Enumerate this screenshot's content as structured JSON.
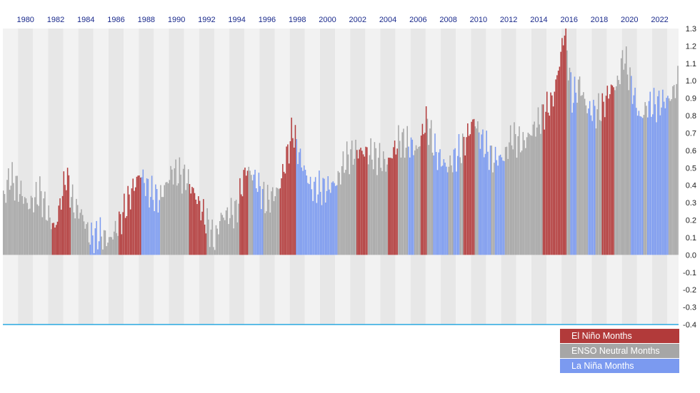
{
  "chart_data": {
    "type": "bar",
    "subtype": "monthly bars colored by ENSO phase",
    "x_ticks": [
      "1980",
      "1982",
      "1984",
      "1986",
      "1988",
      "1990",
      "1992",
      "1994",
      "1996",
      "1998",
      "2000",
      "2002",
      "2004",
      "2006",
      "2008",
      "2010",
      "2012",
      "2014",
      "2016",
      "2018",
      "2020",
      "2022"
    ],
    "x_range": [
      "1979-01",
      "2023-09"
    ],
    "ylim": [
      -0.4,
      1.3
    ],
    "y_ticks": [
      "1.3",
      "1.2",
      "1.1",
      "1.0",
      "0.9",
      "0.8",
      "0.7",
      "0.6",
      "0.5",
      "0.4",
      "0.3",
      "0.2",
      "0.1",
      "0.0",
      "-0.1",
      "-0.2",
      "-0.3",
      "-0.4"
    ],
    "y_axis_position": "right",
    "x_axis_position": "top",
    "grid": "alternating vertical year bands",
    "legend_position": "bottom-right",
    "colors": {
      "el_nino": "#b23a3a",
      "neutral": "#a6a6a6",
      "la_nina": "#7b9af0",
      "band_light": "#f2f2f2",
      "band_dark": "#e7e7e7",
      "baseline": "#29a8e0"
    },
    "legend": [
      {
        "label": "El Niño Months",
        "phase": "N"
      },
      {
        "label": "ENSO Neutral Months",
        "phase": "E"
      },
      {
        "label": "La Niña Months",
        "phase": "L"
      }
    ],
    "phase_periods": [
      {
        "from": "1979-01",
        "to": "1982-03",
        "phase": "E"
      },
      {
        "from": "1982-04",
        "to": "1983-06",
        "phase": "N"
      },
      {
        "from": "1983-07",
        "to": "1984-09",
        "phase": "E"
      },
      {
        "from": "1984-10",
        "to": "1985-06",
        "phase": "L"
      },
      {
        "from": "1985-07",
        "to": "1986-08",
        "phase": "E"
      },
      {
        "from": "1986-09",
        "to": "1988-02",
        "phase": "N"
      },
      {
        "from": "1988-03",
        "to": "1989-05",
        "phase": "L"
      },
      {
        "from": "1989-06",
        "to": "1991-04",
        "phase": "E"
      },
      {
        "from": "1991-05",
        "to": "1992-06",
        "phase": "N"
      },
      {
        "from": "1992-07",
        "to": "1994-08",
        "phase": "E"
      },
      {
        "from": "1994-09",
        "to": "1995-03",
        "phase": "N"
      },
      {
        "from": "1995-04",
        "to": "1995-07",
        "phase": "E"
      },
      {
        "from": "1995-08",
        "to": "1996-03",
        "phase": "L"
      },
      {
        "from": "1996-04",
        "to": "1997-04",
        "phase": "E"
      },
      {
        "from": "1997-05",
        "to": "1998-05",
        "phase": "N"
      },
      {
        "from": "1998-06",
        "to": "2001-02",
        "phase": "L"
      },
      {
        "from": "2001-03",
        "to": "2002-05",
        "phase": "E"
      },
      {
        "from": "2002-06",
        "to": "2003-02",
        "phase": "N"
      },
      {
        "from": "2003-03",
        "to": "2004-06",
        "phase": "E"
      },
      {
        "from": "2004-07",
        "to": "2005-02",
        "phase": "N"
      },
      {
        "from": "2005-03",
        "to": "2005-10",
        "phase": "E"
      },
      {
        "from": "2005-11",
        "to": "2006-03",
        "phase": "L"
      },
      {
        "from": "2006-04",
        "to": "2006-08",
        "phase": "E"
      },
      {
        "from": "2006-09",
        "to": "2007-01",
        "phase": "N"
      },
      {
        "from": "2007-02",
        "to": "2007-06",
        "phase": "E"
      },
      {
        "from": "2007-07",
        "to": "2008-06",
        "phase": "L"
      },
      {
        "from": "2008-07",
        "to": "2008-10",
        "phase": "E"
      },
      {
        "from": "2008-11",
        "to": "2009-03",
        "phase": "L"
      },
      {
        "from": "2009-04",
        "to": "2009-06",
        "phase": "E"
      },
      {
        "from": "2009-07",
        "to": "2010-03",
        "phase": "N"
      },
      {
        "from": "2010-04",
        "to": "2010-06",
        "phase": "E"
      },
      {
        "from": "2010-07",
        "to": "2011-04",
        "phase": "L"
      },
      {
        "from": "2011-05",
        "to": "2011-07",
        "phase": "E"
      },
      {
        "from": "2011-08",
        "to": "2012-03",
        "phase": "L"
      },
      {
        "from": "2012-04",
        "to": "2014-09",
        "phase": "E"
      },
      {
        "from": "2014-10",
        "to": "2016-04",
        "phase": "N"
      },
      {
        "from": "2016-05",
        "to": "2016-07",
        "phase": "E"
      },
      {
        "from": "2016-08",
        "to": "2016-12",
        "phase": "L"
      },
      {
        "from": "2017-01",
        "to": "2017-09",
        "phase": "E"
      },
      {
        "from": "2017-10",
        "to": "2018-03",
        "phase": "L"
      },
      {
        "from": "2018-04",
        "to": "2018-08",
        "phase": "E"
      },
      {
        "from": "2018-09",
        "to": "2019-06",
        "phase": "N"
      },
      {
        "from": "2019-07",
        "to": "2020-07",
        "phase": "E"
      },
      {
        "from": "2020-08",
        "to": "2021-05",
        "phase": "L"
      },
      {
        "from": "2021-06",
        "to": "2021-08",
        "phase": "E"
      },
      {
        "from": "2021-09",
        "to": "2023-01",
        "phase": "L"
      },
      {
        "from": "2023-02",
        "to": "2023-09",
        "phase": "E"
      }
    ],
    "anomaly_anchor_points": [
      {
        "date": "1979-01",
        "value": 0.32
      },
      {
        "date": "1979-06",
        "value": 0.45
      },
      {
        "date": "1980-03",
        "value": 0.36
      },
      {
        "date": "1980-09",
        "value": 0.28
      },
      {
        "date": "1981-06",
        "value": 0.36
      },
      {
        "date": "1982-01",
        "value": 0.22
      },
      {
        "date": "1982-06",
        "value": 0.15
      },
      {
        "date": "1983-03",
        "value": 0.46
      },
      {
        "date": "1983-09",
        "value": 0.28
      },
      {
        "date": "1984-03",
        "value": 0.24
      },
      {
        "date": "1984-10",
        "value": 0.1
      },
      {
        "date": "1985-06",
        "value": 0.12
      },
      {
        "date": "1986-01",
        "value": 0.08
      },
      {
        "date": "1986-09",
        "value": 0.18
      },
      {
        "date": "1987-09",
        "value": 0.4
      },
      {
        "date": "1988-02",
        "value": 0.47
      },
      {
        "date": "1988-09",
        "value": 0.36
      },
      {
        "date": "1989-05",
        "value": 0.32
      },
      {
        "date": "1990-03",
        "value": 0.48
      },
      {
        "date": "1991-03",
        "value": 0.44
      },
      {
        "date": "1991-09",
        "value": 0.35
      },
      {
        "date": "1992-06",
        "value": 0.2
      },
      {
        "date": "1993-01",
        "value": 0.08
      },
      {
        "date": "1993-06",
        "value": 0.22
      },
      {
        "date": "1994-06",
        "value": 0.25
      },
      {
        "date": "1995-02",
        "value": 0.5
      },
      {
        "date": "1995-09",
        "value": 0.44
      },
      {
        "date": "1996-06",
        "value": 0.3
      },
      {
        "date": "1997-04",
        "value": 0.38
      },
      {
        "date": "1997-12",
        "value": 0.62
      },
      {
        "date": "1998-03",
        "value": 0.72
      },
      {
        "date": "1998-09",
        "value": 0.55
      },
      {
        "date": "1999-06",
        "value": 0.38
      },
      {
        "date": "2000-06",
        "value": 0.38
      },
      {
        "date": "2001-02",
        "value": 0.42
      },
      {
        "date": "2001-09",
        "value": 0.55
      },
      {
        "date": "2002-06",
        "value": 0.6
      },
      {
        "date": "2003-06",
        "value": 0.58
      },
      {
        "date": "2004-06",
        "value": 0.52
      },
      {
        "date": "2005-03",
        "value": 0.66
      },
      {
        "date": "2005-11",
        "value": 0.64
      },
      {
        "date": "2006-06",
        "value": 0.6
      },
      {
        "date": "2007-01",
        "value": 0.78
      },
      {
        "date": "2007-09",
        "value": 0.58
      },
      {
        "date": "2008-06",
        "value": 0.5
      },
      {
        "date": "2009-06",
        "value": 0.62
      },
      {
        "date": "2010-03",
        "value": 0.78
      },
      {
        "date": "2010-09",
        "value": 0.66
      },
      {
        "date": "2011-06",
        "value": 0.55
      },
      {
        "date": "2012-03",
        "value": 0.56
      },
      {
        "date": "2012-09",
        "value": 0.68
      },
      {
        "date": "2013-06",
        "value": 0.64
      },
      {
        "date": "2014-06",
        "value": 0.76
      },
      {
        "date": "2015-06",
        "value": 0.9
      },
      {
        "date": "2015-12",
        "value": 1.15
      },
      {
        "date": "2016-03",
        "value": 1.3
      },
      {
        "date": "2016-09",
        "value": 0.9
      },
      {
        "date": "2017-03",
        "value": 0.98
      },
      {
        "date": "2017-09",
        "value": 0.84
      },
      {
        "date": "2018-03",
        "value": 0.82
      },
      {
        "date": "2018-09",
        "value": 0.84
      },
      {
        "date": "2019-03",
        "value": 0.95
      },
      {
        "date": "2019-09",
        "value": 0.98
      },
      {
        "date": "2020-02",
        "value": 1.15
      },
      {
        "date": "2020-09",
        "value": 0.95
      },
      {
        "date": "2021-03",
        "value": 0.78
      },
      {
        "date": "2021-09",
        "value": 0.86
      },
      {
        "date": "2022-03",
        "value": 0.86
      },
      {
        "date": "2022-09",
        "value": 0.88
      },
      {
        "date": "2023-03",
        "value": 0.9
      },
      {
        "date": "2023-09",
        "value": 1.0
      }
    ]
  }
}
